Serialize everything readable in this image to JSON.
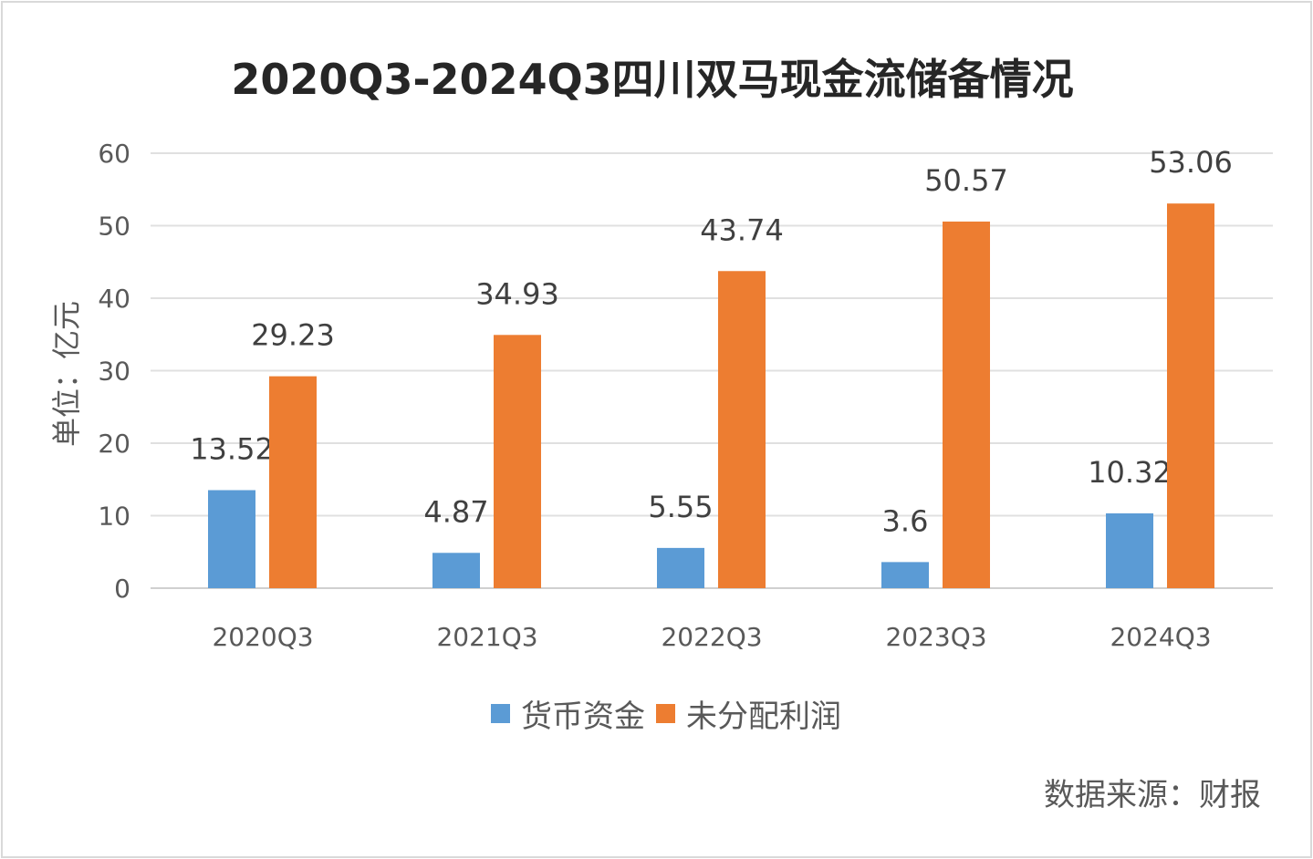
{
  "chart_data": {
    "type": "bar",
    "title": "2020Q3-2024Q3四川双马现金流储备情况",
    "xlabel": "",
    "ylabel": "单位：亿元",
    "ylim": [
      0,
      60
    ],
    "yticks": [
      0,
      10,
      20,
      30,
      40,
      50,
      60
    ],
    "grid": true,
    "legend_position": "bottom",
    "categories": [
      "2020Q3",
      "2021Q3",
      "2022Q3",
      "2023Q3",
      "2024Q3"
    ],
    "series": [
      {
        "name": "货币资金",
        "color": "#5b9bd5",
        "values": [
          13.52,
          4.87,
          5.55,
          3.6,
          10.32
        ],
        "labels": [
          "13.52",
          "4.87",
          "5.55",
          "3.6",
          "10.32"
        ]
      },
      {
        "name": "未分配利润",
        "color": "#ed7d31",
        "values": [
          29.23,
          34.93,
          43.74,
          50.57,
          53.06
        ],
        "labels": [
          "29.23",
          "34.93",
          "43.74",
          "50.57",
          "53.06"
        ]
      }
    ],
    "source": "数据来源：财报"
  }
}
